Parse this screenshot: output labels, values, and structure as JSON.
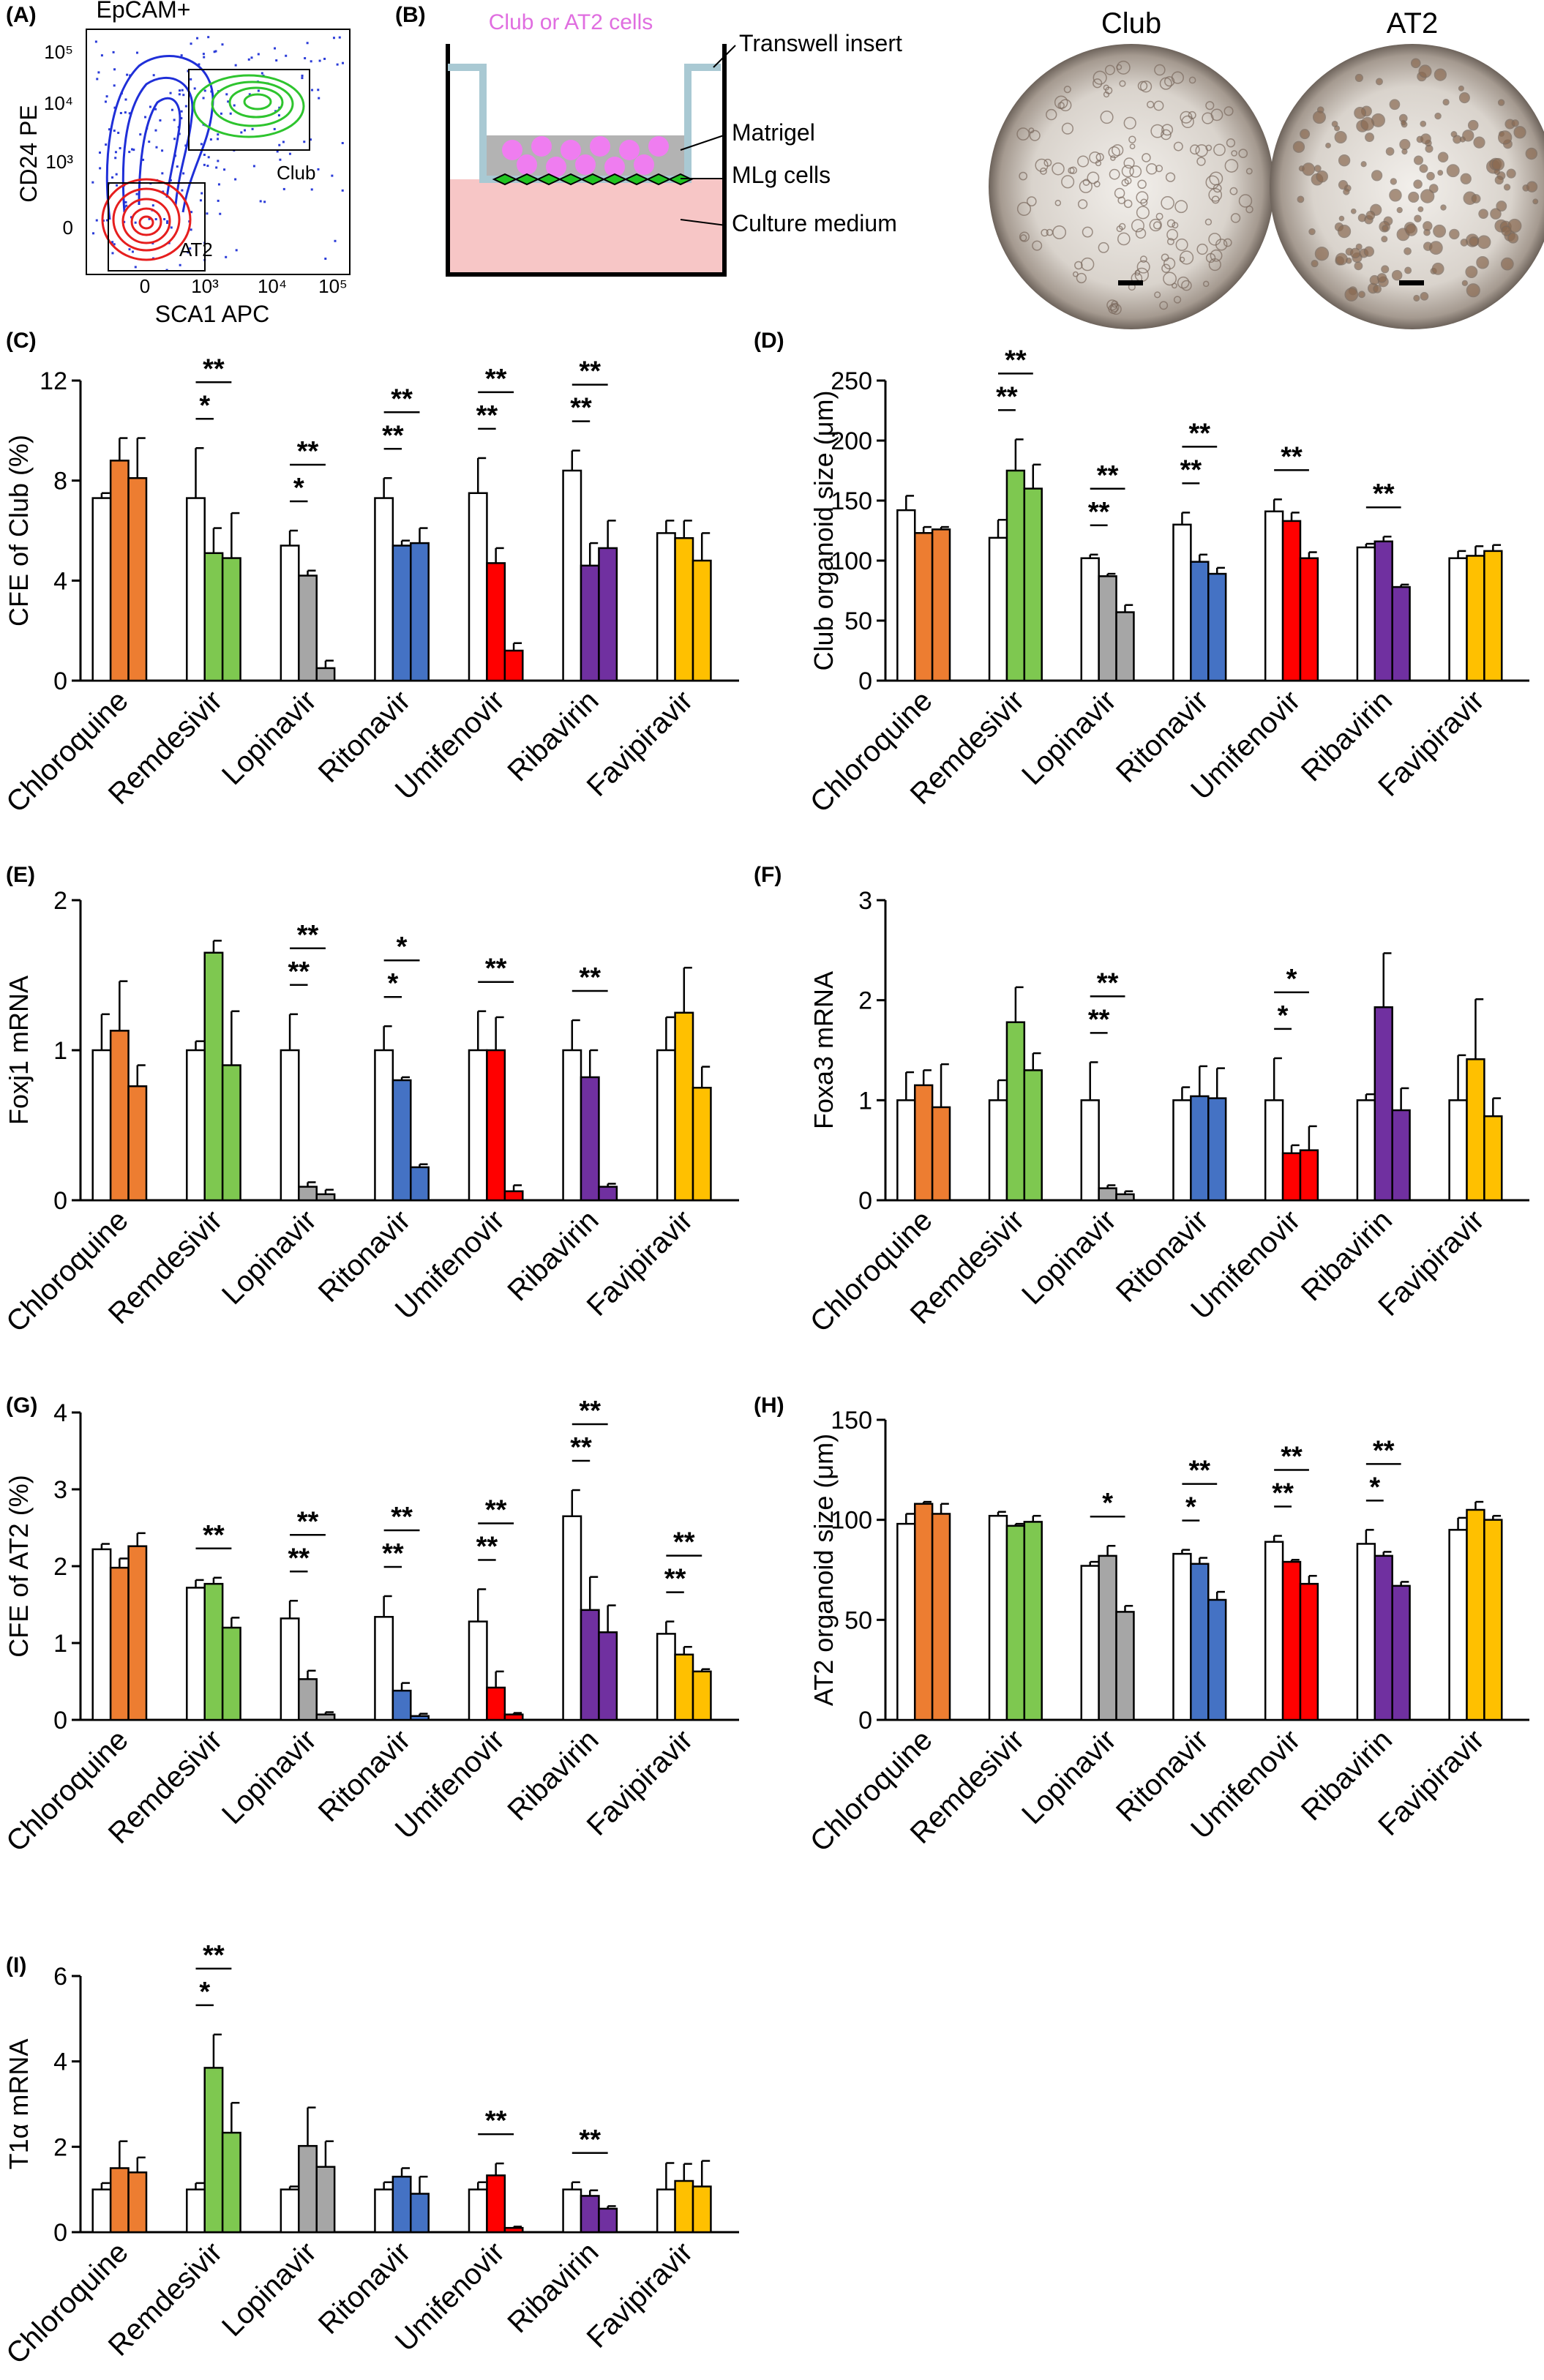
{
  "colors": {
    "Chloroquine": "#ed7d31",
    "Remdesivir": "#7ec850",
    "Lopinavir": "#a6a6a6",
    "Ritonavir": "#4472c4",
    "Umifenovir": "#ff0000",
    "Ribavirin": "#7030a0",
    "Favipiravir": "#ffc000",
    "control": "#ffffff"
  },
  "panel_a": {
    "letter": "(A)",
    "title": "EpCAM+",
    "xlabel": "SCA1 APC",
    "ylabel": "CD24 PE",
    "gate_club": "Club",
    "gate_at2": "AT2",
    "xticks": [
      "0",
      "10³",
      "10⁴",
      "10⁵"
    ],
    "yticks": [
      "10⁵",
      "10⁴",
      "10³",
      "0"
    ]
  },
  "panel_b": {
    "letter": "(B)",
    "label_cells": "Club or AT2 cells",
    "label_insert": "Transwell insert",
    "label_matrigel": "Matrigel",
    "label_mlg": "MLg cells",
    "label_medium": "Culture medium",
    "image_club": "Club",
    "image_at2": "AT2"
  },
  "chart_data": [
    {
      "panel": "(C)",
      "type": "bar",
      "ylabel": "CFE of Club (%)",
      "ylim": [
        0,
        12
      ],
      "yticks": [
        0,
        4,
        8,
        12
      ],
      "categories": [
        "Chloroquine",
        "Remdesivir",
        "Lopinavir",
        "Ritonavir",
        "Umifenovir",
        "Ribavirin",
        "Favipiravir"
      ],
      "values": [
        [
          7.3,
          8.8,
          8.1
        ],
        [
          7.3,
          5.1,
          4.9
        ],
        [
          5.4,
          4.2,
          0.5
        ],
        [
          7.3,
          5.4,
          5.5
        ],
        [
          7.5,
          4.7,
          1.2
        ],
        [
          8.4,
          4.6,
          5.3
        ],
        [
          5.9,
          5.7,
          4.8
        ]
      ],
      "errors": [
        [
          0.2,
          0.9,
          1.6
        ],
        [
          2.0,
          1.0,
          1.8
        ],
        [
          0.6,
          0.2,
          0.3
        ],
        [
          0.8,
          0.2,
          0.6
        ],
        [
          1.4,
          0.6,
          0.3
        ],
        [
          0.8,
          0.9,
          1.1
        ],
        [
          0.5,
          0.7,
          1.1
        ]
      ],
      "sig": [
        null,
        [
          "*",
          "**"
        ],
        [
          "*",
          "**"
        ],
        [
          "**",
          "**"
        ],
        [
          "**",
          "**"
        ],
        [
          "**",
          "**"
        ],
        null
      ]
    },
    {
      "panel": "(D)",
      "type": "bar",
      "ylabel": "Club organoid size (μm)",
      "ylim": [
        0,
        250
      ],
      "yticks": [
        0,
        50,
        100,
        150,
        200,
        250
      ],
      "categories": [
        "Chloroquine",
        "Remdesivir",
        "Lopinavir",
        "Ritonavir",
        "Umifenovir",
        "Ribavirin",
        "Favipiravir"
      ],
      "values": [
        [
          142,
          123,
          126
        ],
        [
          119,
          175,
          160
        ],
        [
          102,
          87,
          57
        ],
        [
          130,
          99,
          89
        ],
        [
          141,
          133,
          102
        ],
        [
          111,
          116,
          78
        ],
        [
          102,
          104,
          108
        ]
      ],
      "errors": [
        [
          12,
          5,
          2
        ],
        [
          15,
          26,
          20
        ],
        [
          3,
          2,
          6
        ],
        [
          10,
          6,
          5
        ],
        [
          10,
          7,
          5
        ],
        [
          3,
          4,
          2
        ],
        [
          6,
          8,
          5
        ]
      ],
      "sig": [
        null,
        [
          "**",
          "**"
        ],
        [
          "**",
          "**"
        ],
        [
          "**",
          "**"
        ],
        [
          null,
          "**"
        ],
        [
          null,
          "**"
        ],
        null
      ]
    },
    {
      "panel": "(E)",
      "type": "bar",
      "ylabel": "Foxj1 mRNA",
      "ylim": [
        0,
        2
      ],
      "yticks": [
        0,
        1,
        2
      ],
      "categories": [
        "Chloroquine",
        "Remdesivir",
        "Lopinavir",
        "Ritonavir",
        "Umifenovir",
        "Ribavirin",
        "Favipiravir"
      ],
      "values": [
        [
          1.0,
          1.13,
          0.76
        ],
        [
          1.0,
          1.65,
          0.9
        ],
        [
          1.0,
          0.09,
          0.04
        ],
        [
          1.0,
          0.8,
          0.22
        ],
        [
          1.0,
          1.0,
          0.06
        ],
        [
          1.0,
          0.82,
          0.09
        ],
        [
          1.0,
          1.25,
          0.75
        ]
      ],
      "errors": [
        [
          0.24,
          0.33,
          0.14
        ],
        [
          0.06,
          0.08,
          0.36
        ],
        [
          0.24,
          0.03,
          0.03
        ],
        [
          0.16,
          0.02,
          0.02
        ],
        [
          0.26,
          0.22,
          0.04
        ],
        [
          0.2,
          0.18,
          0.02
        ],
        [
          0.22,
          0.3,
          0.14
        ]
      ],
      "sig": [
        null,
        null,
        [
          "**",
          "**"
        ],
        [
          "*",
          "*"
        ],
        [
          null,
          "**"
        ],
        [
          null,
          "**"
        ],
        null
      ]
    },
    {
      "panel": "(F)",
      "type": "bar",
      "ylabel": "Foxa3 mRNA",
      "ylim": [
        0,
        3
      ],
      "yticks": [
        0,
        1,
        2,
        3
      ],
      "categories": [
        "Chloroquine",
        "Remdesivir",
        "Lopinavir",
        "Ritonavir",
        "Umifenovir",
        "Ribavirin",
        "Favipiravir"
      ],
      "values": [
        [
          1.0,
          1.15,
          0.93
        ],
        [
          1.0,
          1.78,
          1.3
        ],
        [
          1.0,
          0.12,
          0.06
        ],
        [
          1.0,
          1.04,
          1.02
        ],
        [
          1.0,
          0.47,
          0.5
        ],
        [
          1.0,
          1.93,
          0.9
        ],
        [
          1.0,
          1.41,
          0.84
        ]
      ],
      "errors": [
        [
          0.28,
          0.15,
          0.43
        ],
        [
          0.2,
          0.35,
          0.17
        ],
        [
          0.38,
          0.03,
          0.03
        ],
        [
          0.13,
          0.3,
          0.3
        ],
        [
          0.42,
          0.08,
          0.24
        ],
        [
          0.06,
          0.54,
          0.22
        ],
        [
          0.45,
          0.6,
          0.18
        ]
      ],
      "sig": [
        null,
        null,
        [
          "**",
          "**"
        ],
        null,
        [
          "*",
          "*"
        ],
        null,
        null
      ]
    },
    {
      "panel": "(G)",
      "type": "bar",
      "ylabel": "CFE of AT2 (%)",
      "ylim": [
        0,
        4
      ],
      "yticks": [
        0,
        1,
        2,
        3,
        4
      ],
      "categories": [
        "Chloroquine",
        "Remdesivir",
        "Lopinavir",
        "Ritonavir",
        "Umifenovir",
        "Ribavirin",
        "Favipiravir"
      ],
      "values": [
        [
          2.22,
          1.98,
          2.26
        ],
        [
          1.72,
          1.77,
          1.2
        ],
        [
          1.32,
          0.53,
          0.07
        ],
        [
          1.34,
          0.38,
          0.05
        ],
        [
          1.28,
          0.42,
          0.07
        ],
        [
          2.65,
          1.43,
          1.14
        ],
        [
          1.12,
          0.85,
          0.63
        ]
      ],
      "errors": [
        [
          0.07,
          0.12,
          0.17
        ],
        [
          0.1,
          0.08,
          0.13
        ],
        [
          0.23,
          0.11,
          0.03
        ],
        [
          0.27,
          0.1,
          0.03
        ],
        [
          0.42,
          0.21,
          0.02
        ],
        [
          0.34,
          0.43,
          0.35
        ],
        [
          0.16,
          0.1,
          0.03
        ]
      ],
      "sig": [
        null,
        [
          null,
          "**"
        ],
        [
          "**",
          "**"
        ],
        [
          "**",
          "**"
        ],
        [
          "**",
          "**"
        ],
        [
          "**",
          "**"
        ],
        [
          "**",
          "**"
        ]
      ]
    },
    {
      "panel": "(H)",
      "type": "bar",
      "ylabel": "AT2 organoid size (μm)",
      "ylim": [
        0,
        150
      ],
      "yticks": [
        0,
        50,
        100,
        150
      ],
      "categories": [
        "Chloroquine",
        "Remdesivir",
        "Lopinavir",
        "Ritonavir",
        "Umifenovir",
        "Ribavirin",
        "Favipiravir"
      ],
      "values": [
        [
          98,
          108,
          103
        ],
        [
          102,
          97,
          99
        ],
        [
          77,
          82,
          54
        ],
        [
          83,
          78,
          60
        ],
        [
          89,
          79,
          68
        ],
        [
          88,
          82,
          67
        ],
        [
          95,
          105,
          100
        ]
      ],
      "errors": [
        [
          5,
          1,
          5
        ],
        [
          2,
          1,
          3
        ],
        [
          2,
          5,
          3
        ],
        [
          2,
          3,
          4
        ],
        [
          3,
          1,
          4
        ],
        [
          7,
          2,
          2
        ],
        [
          6,
          4,
          2
        ]
      ],
      "sig": [
        null,
        null,
        [
          null,
          "*"
        ],
        [
          "*",
          "**"
        ],
        [
          "**",
          "**"
        ],
        [
          "*",
          "**"
        ],
        null
      ]
    },
    {
      "panel": "(I)",
      "type": "bar",
      "ylabel": "T1α mRNA",
      "ylim": [
        0,
        6
      ],
      "yticks": [
        0,
        2,
        4,
        6
      ],
      "categories": [
        "Chloroquine",
        "Remdesivir",
        "Lopinavir",
        "Ritonavir",
        "Umifenovir",
        "Ribavirin",
        "Favipiravir"
      ],
      "values": [
        [
          1.0,
          1.5,
          1.4
        ],
        [
          1.0,
          3.85,
          2.33
        ],
        [
          1.0,
          2.02,
          1.53
        ],
        [
          1.0,
          1.3,
          0.9
        ],
        [
          1.0,
          1.33,
          0.1
        ],
        [
          1.0,
          0.85,
          0.55
        ],
        [
          1.0,
          1.2,
          1.07
        ]
      ],
      "errors": [
        [
          0.15,
          0.63,
          0.35
        ],
        [
          0.15,
          0.78,
          0.7
        ],
        [
          0.07,
          0.9,
          0.6
        ],
        [
          0.17,
          0.2,
          0.4
        ],
        [
          0.17,
          0.28,
          0.03
        ],
        [
          0.17,
          0.13,
          0.06
        ],
        [
          0.62,
          0.4,
          0.6
        ]
      ],
      "sig": [
        null,
        [
          "*",
          "**"
        ],
        null,
        null,
        [
          null,
          "**"
        ],
        [
          null,
          "**"
        ],
        null
      ]
    }
  ]
}
